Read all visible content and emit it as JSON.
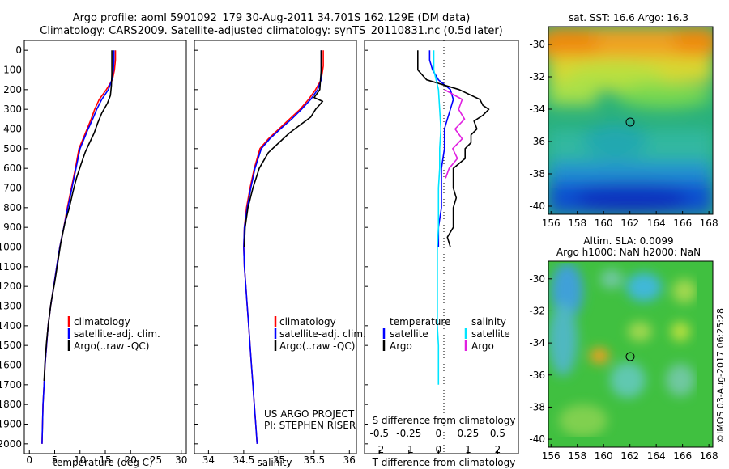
{
  "title": {
    "line1": "Argo profile: aoml 5901092_179 30-Aug-2011 34.701S 162.129E (DM data)",
    "line2": "Climatology: CARS2009. Satellite-adjusted climatology: synTS_20110831.nc (0.5d later)"
  },
  "colors": {
    "climatology": "#ff0000",
    "satellite": "#0000ff",
    "argo": "#000000",
    "sat_s": "#00e5ff",
    "argo_s": "#e020e0"
  },
  "depth_ticks": [
    0,
    100,
    200,
    300,
    400,
    500,
    600,
    700,
    800,
    900,
    1000,
    1100,
    1200,
    1300,
    1400,
    1500,
    1600,
    1700,
    1800,
    1900,
    2000
  ],
  "panel_temp": {
    "xlabel": "temperature (deg C)",
    "xticks": [
      "0",
      "5",
      "10",
      "15",
      "20",
      "25",
      "30"
    ],
    "legend": [
      "climatology",
      "satellite-adj. clim.",
      "Argo(..raw -QC)"
    ]
  },
  "panel_sal": {
    "xlabel": "salinity",
    "xticks": [
      "34",
      "34.5",
      "35",
      "35.5",
      "36"
    ],
    "legend": [
      "climatology",
      "satellite-adj. clim.",
      "Argo(..raw -QC)"
    ],
    "credit1": "US ARGO PROJECT",
    "credit2": "PI: STEPHEN RISER"
  },
  "panel_diff": {
    "top_label": "S difference from climatology",
    "top_ticks": [
      "-0.5",
      "-0.25",
      "0",
      "0.25",
      "0.5"
    ],
    "bottom_ticks": [
      "-2",
      "-1",
      "0",
      "1",
      "2"
    ],
    "xlabel": "T difference from climatology",
    "legend_t_title": "temperature",
    "legend_s_title": "salinity",
    "legend_t": [
      "satellite",
      "Argo"
    ],
    "legend_s": [
      "satellite",
      "Argo"
    ]
  },
  "map_sst": {
    "title": "sat. SST: 16.6 Argo: 16.3",
    "yticks": [
      "-30",
      "-32",
      "-34",
      "-36",
      "-38",
      "-40"
    ],
    "xticks": [
      "156",
      "158",
      "160",
      "162",
      "164",
      "166",
      "168"
    ]
  },
  "map_sla": {
    "title1": "Altim. SLA: 0.0099",
    "title2": "Argo h1000: NaN h2000: NaN",
    "yticks": [
      "-30",
      "-32",
      "-34",
      "-36",
      "-38",
      "-40"
    ],
    "xticks": [
      "156",
      "158",
      "160",
      "162",
      "164",
      "166",
      "168"
    ]
  },
  "stamp": "©IMOS 03-Aug-2017 06:25:28",
  "chart_data": [
    {
      "type": "line",
      "xlabel": "temperature (deg C)",
      "ylabel": "",
      "xlim": [
        -1,
        31
      ],
      "ylim": [
        2050,
        0
      ],
      "series": [
        {
          "name": "climatology",
          "points": [
            [
              17.0,
              0
            ],
            [
              17.0,
              50
            ],
            [
              16.8,
              100
            ],
            [
              16.4,
              150
            ],
            [
              15.2,
              200
            ],
            [
              13.8,
              250
            ],
            [
              12.9,
              300
            ],
            [
              12.2,
              350
            ],
            [
              11.4,
              400
            ],
            [
              10.6,
              450
            ],
            [
              9.8,
              500
            ],
            [
              9.1,
              600
            ],
            [
              8.3,
              700
            ],
            [
              7.5,
              800
            ],
            [
              6.8,
              900
            ],
            [
              6.0,
              1000
            ],
            [
              5.4,
              1100
            ],
            [
              4.8,
              1200
            ],
            [
              4.2,
              1300
            ],
            [
              3.7,
              1400
            ],
            [
              3.4,
              1500
            ],
            [
              3.1,
              1600
            ],
            [
              2.9,
              1700
            ],
            [
              2.7,
              1800
            ],
            [
              2.6,
              1900
            ],
            [
              2.5,
              2000
            ]
          ]
        },
        {
          "name": "satellite-adj. clim.",
          "points": [
            [
              16.7,
              0
            ],
            [
              16.7,
              50
            ],
            [
              16.6,
              100
            ],
            [
              16.3,
              150
            ],
            [
              15.6,
              200
            ],
            [
              14.3,
              250
            ],
            [
              13.3,
              300
            ],
            [
              12.5,
              350
            ],
            [
              11.6,
              400
            ],
            [
              10.8,
              450
            ],
            [
              10.0,
              500
            ],
            [
              9.2,
              600
            ],
            [
              8.4,
              700
            ],
            [
              7.6,
              800
            ],
            [
              6.8,
              900
            ],
            [
              6.0,
              1000
            ],
            [
              5.4,
              1100
            ],
            [
              4.8,
              1200
            ],
            [
              4.2,
              1300
            ],
            [
              3.7,
              1400
            ],
            [
              3.4,
              1500
            ],
            [
              3.1,
              1600
            ],
            [
              2.9,
              1700
            ],
            [
              2.7,
              1800
            ],
            [
              2.6,
              1900
            ],
            [
              2.5,
              2000
            ]
          ]
        },
        {
          "name": "Argo(..raw -QC)",
          "points": [
            [
              16.3,
              0
            ],
            [
              16.3,
              60
            ],
            [
              16.3,
              120
            ],
            [
              16.2,
              180
            ],
            [
              16.0,
              230
            ],
            [
              15.4,
              270
            ],
            [
              14.3,
              320
            ],
            [
              13.5,
              370
            ],
            [
              12.8,
              420
            ],
            [
              11.7,
              480
            ],
            [
              11.0,
              520
            ],
            [
              10.2,
              580
            ],
            [
              9.3,
              650
            ],
            [
              8.6,
              720
            ],
            [
              7.9,
              800
            ],
            [
              7.0,
              880
            ],
            [
              6.2,
              980
            ],
            [
              5.6,
              1080
            ],
            [
              5.0,
              1180
            ],
            [
              4.3,
              1280
            ],
            [
              3.8,
              1380
            ],
            [
              3.4,
              1480
            ],
            [
              3.1,
              1580
            ],
            [
              2.9,
              1680
            ]
          ]
        }
      ]
    },
    {
      "type": "line",
      "xlabel": "salinity",
      "ylabel": "",
      "xlim": [
        33.8,
        36.1
      ],
      "ylim": [
        2050,
        0
      ],
      "series": [
        {
          "name": "climatology",
          "points": [
            [
              35.63,
              0
            ],
            [
              35.63,
              80
            ],
            [
              35.6,
              150
            ],
            [
              35.52,
              200
            ],
            [
              35.42,
              250
            ],
            [
              35.3,
              300
            ],
            [
              35.15,
              350
            ],
            [
              35.0,
              400
            ],
            [
              34.85,
              450
            ],
            [
              34.73,
              500
            ],
            [
              34.65,
              600
            ],
            [
              34.59,
              700
            ],
            [
              34.54,
              800
            ],
            [
              34.51,
              900
            ],
            [
              34.5,
              1000
            ],
            [
              34.51,
              1100
            ],
            [
              34.53,
              1200
            ],
            [
              34.55,
              1300
            ],
            [
              34.57,
              1400
            ],
            [
              34.59,
              1500
            ],
            [
              34.61,
              1600
            ],
            [
              34.63,
              1700
            ],
            [
              34.65,
              1800
            ],
            [
              34.67,
              1900
            ],
            [
              34.69,
              2000
            ]
          ]
        },
        {
          "name": "satellite-adj. clim.",
          "points": [
            [
              35.6,
              0
            ],
            [
              35.6,
              80
            ],
            [
              35.6,
              150
            ],
            [
              35.55,
              200
            ],
            [
              35.45,
              250
            ],
            [
              35.32,
              300
            ],
            [
              35.18,
              350
            ],
            [
              35.02,
              400
            ],
            [
              34.87,
              450
            ],
            [
              34.75,
              500
            ],
            [
              34.66,
              600
            ],
            [
              34.6,
              700
            ],
            [
              34.55,
              800
            ],
            [
              34.51,
              900
            ],
            [
              34.5,
              1000
            ],
            [
              34.51,
              1100
            ],
            [
              34.53,
              1200
            ],
            [
              34.55,
              1300
            ],
            [
              34.57,
              1400
            ],
            [
              34.59,
              1500
            ],
            [
              34.61,
              1600
            ],
            [
              34.63,
              1700
            ],
            [
              34.65,
              1800
            ],
            [
              34.67,
              1900
            ],
            [
              34.69,
              2000
            ]
          ]
        },
        {
          "name": "Argo(..raw -QC)",
          "points": [
            [
              35.6,
              0
            ],
            [
              35.6,
              100
            ],
            [
              35.58,
              200
            ],
            [
              35.5,
              240
            ],
            [
              35.62,
              260
            ],
            [
              35.52,
              300
            ],
            [
              35.45,
              340
            ],
            [
              35.3,
              380
            ],
            [
              35.15,
              420
            ],
            [
              35.0,
              470
            ],
            [
              34.85,
              520
            ],
            [
              34.72,
              600
            ],
            [
              34.63,
              700
            ],
            [
              34.56,
              800
            ],
            [
              34.52,
              900
            ],
            [
              34.51,
              1000
            ]
          ]
        }
      ]
    },
    {
      "type": "line",
      "xlabel": "T difference from climatology",
      "ylabel": "",
      "xlim": [
        -2.5,
        2.7
      ],
      "ylim": [
        2050,
        0
      ],
      "series": [
        {
          "name": "temperature satellite",
          "points": [
            [
              -0.3,
              0
            ],
            [
              -0.3,
              50
            ],
            [
              -0.2,
              100
            ],
            [
              0.0,
              150
            ],
            [
              0.4,
              200
            ],
            [
              0.5,
              250
            ],
            [
              0.4,
              300
            ],
            [
              0.3,
              350
            ],
            [
              0.2,
              400
            ],
            [
              0.2,
              450
            ],
            [
              0.2,
              500
            ],
            [
              0.1,
              600
            ],
            [
              0.1,
              700
            ],
            [
              0.1,
              800
            ],
            [
              0.0,
              900
            ],
            [
              0.0,
              1000
            ]
          ]
        },
        {
          "name": "temperature Argo",
          "points": [
            [
              -0.7,
              0
            ],
            [
              -0.7,
              50
            ],
            [
              -0.7,
              100
            ],
            [
              -0.4,
              150
            ],
            [
              0.7,
              200
            ],
            [
              1.4,
              250
            ],
            [
              1.5,
              280
            ],
            [
              1.7,
              300
            ],
            [
              1.5,
              330
            ],
            [
              1.2,
              360
            ],
            [
              1.3,
              400
            ],
            [
              1.1,
              430
            ],
            [
              1.1,
              470
            ],
            [
              0.9,
              500
            ],
            [
              0.9,
              550
            ],
            [
              0.5,
              600
            ],
            [
              0.5,
              650
            ],
            [
              0.5,
              700
            ],
            [
              0.6,
              750
            ],
            [
              0.5,
              800
            ],
            [
              0.5,
              900
            ],
            [
              0.3,
              950
            ],
            [
              0.4,
              1000
            ]
          ]
        },
        {
          "name": "salinity satellite",
          "points": [
            [
              -0.04,
              0
            ],
            [
              -0.04,
              100
            ],
            [
              0.0,
              200
            ],
            [
              0.01,
              300
            ],
            [
              0.02,
              400
            ],
            [
              0.01,
              500
            ],
            [
              0.01,
              600
            ],
            [
              0.0,
              700
            ],
            [
              0.0,
              800
            ],
            [
              0.0,
              900
            ],
            [
              -0.01,
              1000
            ],
            [
              -0.01,
              1100
            ],
            [
              -0.01,
              1200
            ],
            [
              -0.01,
              1300
            ],
            [
              -0.01,
              1400
            ],
            [
              0.0,
              1500
            ],
            [
              0.0,
              1600
            ],
            [
              0.0,
              1700
            ]
          ]
        },
        {
          "name": "salinity Argo",
          "points": [
            [
              0.05,
              200
            ],
            [
              0.2,
              250
            ],
            [
              0.17,
              300
            ],
            [
              0.22,
              350
            ],
            [
              0.14,
              400
            ],
            [
              0.2,
              450
            ],
            [
              0.12,
              500
            ],
            [
              0.16,
              550
            ],
            [
              0.09,
              600
            ],
            [
              0.06,
              650
            ]
          ]
        }
      ]
    }
  ]
}
